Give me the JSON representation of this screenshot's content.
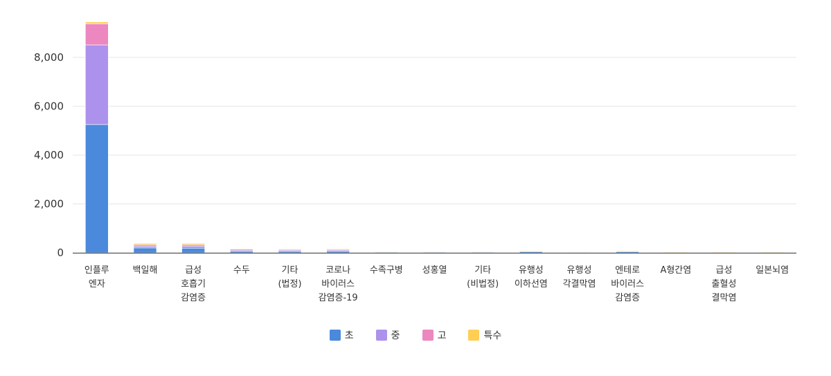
{
  "chart_data": {
    "type": "bar",
    "stacked": true,
    "categories": [
      [
        "인플루",
        "엔자"
      ],
      [
        "백일해"
      ],
      [
        "급성",
        "호흡기",
        "감염증"
      ],
      [
        "수두"
      ],
      [
        "기타",
        "(법정)"
      ],
      [
        "코로나",
        "바이러스",
        "감염증-19"
      ],
      [
        "수족구병"
      ],
      [
        "성홍열"
      ],
      [
        "기타",
        "(비법정)"
      ],
      [
        "유행성",
        "이하선염"
      ],
      [
        "유행성",
        "각결막염"
      ],
      [
        "엔테로",
        "바이러스",
        "감염증"
      ],
      [
        "A형간염"
      ],
      [
        "급성",
        "출혈성",
        "결막염"
      ],
      [
        "일본뇌염"
      ]
    ],
    "series": [
      {
        "name": "초",
        "color": "#4a89dc",
        "values": [
          5250,
          200,
          190,
          60,
          55,
          60,
          30,
          30,
          30,
          40,
          25,
          40,
          10,
          10,
          15
        ]
      },
      {
        "name": "중",
        "color": "#ac92ec",
        "values": [
          3260,
          70,
          80,
          50,
          50,
          50,
          10,
          10,
          10,
          30,
          10,
          30,
          5,
          10,
          5
        ]
      },
      {
        "name": "고",
        "color": "#ec87c0",
        "values": [
          860,
          60,
          60,
          50,
          40,
          40,
          5,
          5,
          5,
          20,
          5,
          20,
          5,
          15,
          5
        ]
      },
      {
        "name": "특수",
        "color": "#ffce54",
        "values": [
          80,
          50,
          50,
          10,
          10,
          10,
          2,
          2,
          2,
          5,
          2,
          5,
          2,
          2,
          2
        ]
      }
    ],
    "yticks": [
      "0",
      "2,000",
      "4,000",
      "6,000",
      "8,000"
    ],
    "ylim": [
      0,
      9500
    ],
    "grid": true,
    "legend_position": "bottom"
  }
}
